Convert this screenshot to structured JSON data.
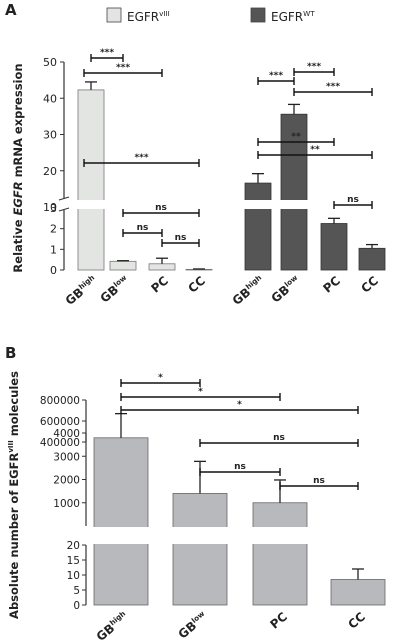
{
  "panels": [
    {
      "letter": "A",
      "ylabel_parts": [
        "Relative ",
        "EGFR",
        " mRNA expression"
      ],
      "legend": [
        {
          "base": "EGFR",
          "sup": "vIII",
          "color": "#e3e5e3"
        },
        {
          "base": "EGFR",
          "sup": "WT",
          "color": "#555555"
        }
      ],
      "upper_ticks": [
        "50",
        "40",
        "30",
        "20",
        "10"
      ],
      "lower_ticks": [
        "3",
        "2",
        "1",
        "0"
      ],
      "categories": [
        {
          "base": "GB",
          "sup": "high"
        },
        {
          "base": "GB",
          "sup": "low"
        },
        {
          "base": "PC",
          "sup": ""
        },
        {
          "base": "CC",
          "sup": ""
        }
      ],
      "annotations": [
        "***",
        "***",
        "***",
        "ns",
        "ns",
        "ns",
        "***",
        "***",
        "***",
        "**",
        "**",
        "ns"
      ]
    },
    {
      "letter": "B",
      "ylabel_parts": [
        "Absolute number of EGFR",
        "vIII",
        " molecules"
      ],
      "upper_ticks": [
        "800000",
        "600000",
        "400000"
      ],
      "middle_ticks": [
        "4000",
        "3000",
        "2000",
        "1000"
      ],
      "lower_ticks": [
        "20",
        "15",
        "10",
        "5",
        "0"
      ],
      "categories": [
        {
          "base": "GB",
          "sup": "high"
        },
        {
          "base": "GB",
          "sup": "low"
        },
        {
          "base": "PC",
          "sup": ""
        },
        {
          "base": "CC",
          "sup": ""
        }
      ],
      "annotations": [
        "*",
        "*",
        "*",
        "ns",
        "ns",
        "ns"
      ]
    }
  ],
  "chart_data": [
    {
      "type": "bar",
      "categories": [
        "GB high",
        "GB low",
        "PC",
        "CC"
      ],
      "series": [
        {
          "name": "EGFRvIII",
          "values": [
            42.3,
            0.42,
            0.3,
            0.03
          ],
          "errors": [
            2.2,
            0.03,
            0.27,
            0.02
          ],
          "color": "#e3e5e3"
        },
        {
          "name": "EGFRWT",
          "values": [
            16.6,
            35.6,
            2.25,
            1.05
          ],
          "errors": [
            2.6,
            2.7,
            0.25,
            0.18
          ],
          "color": "#555555"
        }
      ],
      "ylabel": "Relative EGFR mRNA expression",
      "y_segments": [
        [
          0,
          3
        ],
        [
          10,
          50
        ]
      ],
      "significance": [
        {
          "series": "EGFRvIII",
          "from": "GB high",
          "to": "GB low",
          "label": "***"
        },
        {
          "series": "EGFRvIII",
          "from": "GB high",
          "to": "PC",
          "label": "***"
        },
        {
          "series": "EGFRvIII",
          "from": "GB high",
          "to": "CC",
          "label": "***"
        },
        {
          "series": "EGFRvIII",
          "from": "GB low",
          "to": "CC",
          "label": "ns"
        },
        {
          "series": "EGFRvIII",
          "from": "GB low",
          "to": "PC",
          "label": "ns"
        },
        {
          "series": "EGFRvIII",
          "from": "PC",
          "to": "CC",
          "label": "ns"
        },
        {
          "series": "EGFRWT",
          "from": "GB high",
          "to": "GB low",
          "label": "***"
        },
        {
          "series": "EGFRWT",
          "from": "GB low",
          "to": "PC",
          "label": "***"
        },
        {
          "series": "EGFRWT",
          "from": "GB low",
          "to": "CC",
          "label": "***"
        },
        {
          "series": "EGFRWT",
          "from": "GB high",
          "to": "PC",
          "label": "**"
        },
        {
          "series": "EGFRWT",
          "from": "GB high",
          "to": "CC",
          "label": "**"
        },
        {
          "series": "EGFRWT",
          "from": "PC",
          "to": "CC",
          "label": "ns"
        }
      ]
    },
    {
      "type": "bar",
      "categories": [
        "GB high",
        "GB low",
        "PC",
        "CC"
      ],
      "series": [
        {
          "name": "EGFRvIII",
          "values": [
            440000,
            1400,
            1000,
            8.5
          ],
          "errors": [
            230000,
            1380,
            980,
            3.5
          ],
          "color": "#b8b9bd"
        }
      ],
      "ylabel": "Absolute number of EGFRvIII molecules",
      "y_segments": [
        [
          0,
          20
        ],
        [
          0,
          4000
        ],
        [
          400000,
          800000
        ]
      ],
      "significance": [
        {
          "from": "GB high",
          "to": "GB low",
          "label": "*"
        },
        {
          "from": "GB high",
          "to": "PC",
          "label": "*"
        },
        {
          "from": "GB high",
          "to": "CC",
          "label": "*"
        },
        {
          "from": "GB low",
          "to": "CC",
          "label": "ns"
        },
        {
          "from": "GB low",
          "to": "PC",
          "label": "ns"
        },
        {
          "from": "PC",
          "to": "CC",
          "label": "ns"
        }
      ]
    }
  ]
}
